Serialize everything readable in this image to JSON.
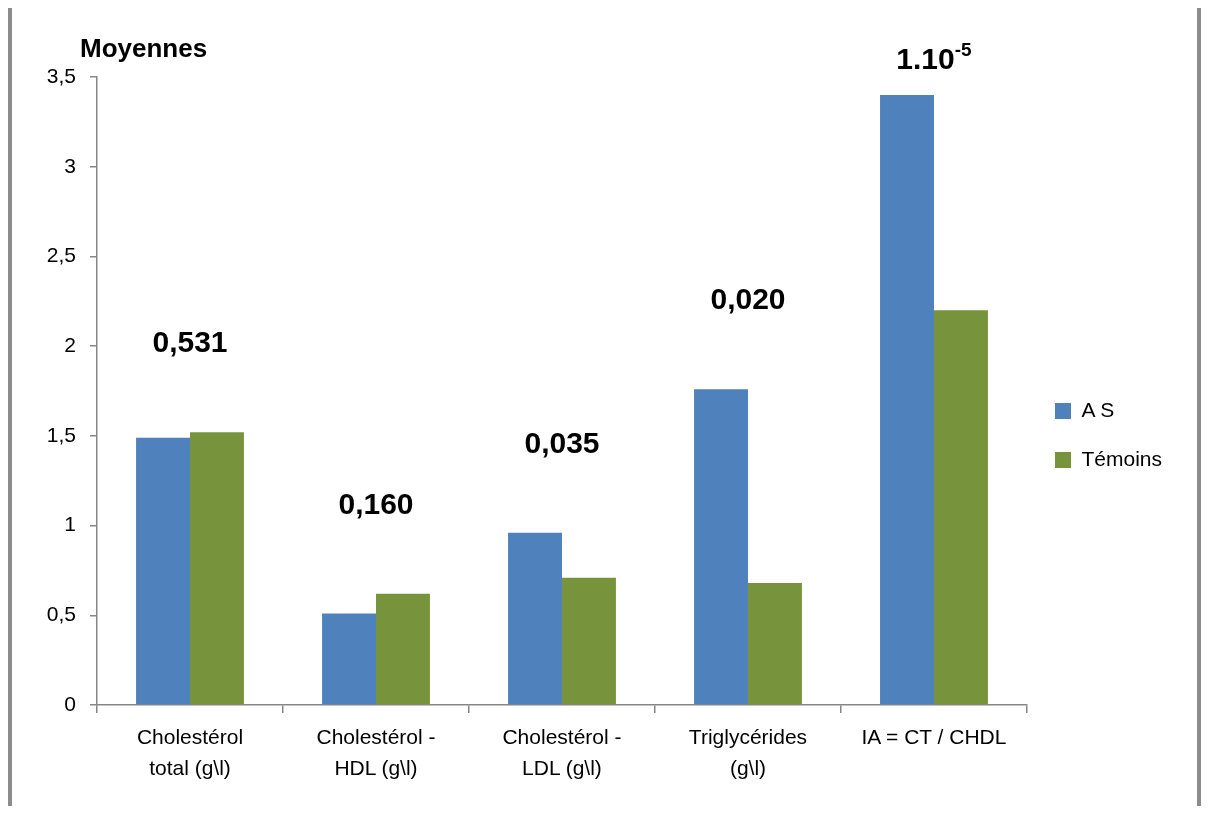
{
  "chart_data": {
    "type": "bar",
    "ylabel": "Moyennes",
    "categories": [
      "Cholestérol\ntotal (g\\l)",
      "Cholestérol -\nHDL (g\\l)",
      "Cholestérol -\nLDL (g\\l)",
      "Triglycérides\n(g\\l)",
      "IA = CT / CHDL"
    ],
    "series": [
      {
        "name": "A S",
        "color": "#4f81bd",
        "values": [
          1.49,
          0.51,
          0.96,
          1.76,
          3.4
        ]
      },
      {
        "name": "Témoins",
        "color": "#77933c",
        "values": [
          1.52,
          0.62,
          0.71,
          0.68,
          2.2
        ]
      }
    ],
    "ylim": [
      0,
      3.5
    ],
    "yticks": [
      0,
      {
        "value": 0.5,
        "label": "0,5"
      },
      1,
      {
        "value": 1.5,
        "label": "1,5"
      },
      2,
      {
        "value": 2.5,
        "label": "2,5"
      },
      3,
      {
        "value": 3.5,
        "label": "3,5"
      }
    ],
    "legend": "right",
    "annotations": [
      "0,531",
      "0,160",
      "0,035",
      "0,020",
      "1.10$^{-5}$"
    ]
  }
}
